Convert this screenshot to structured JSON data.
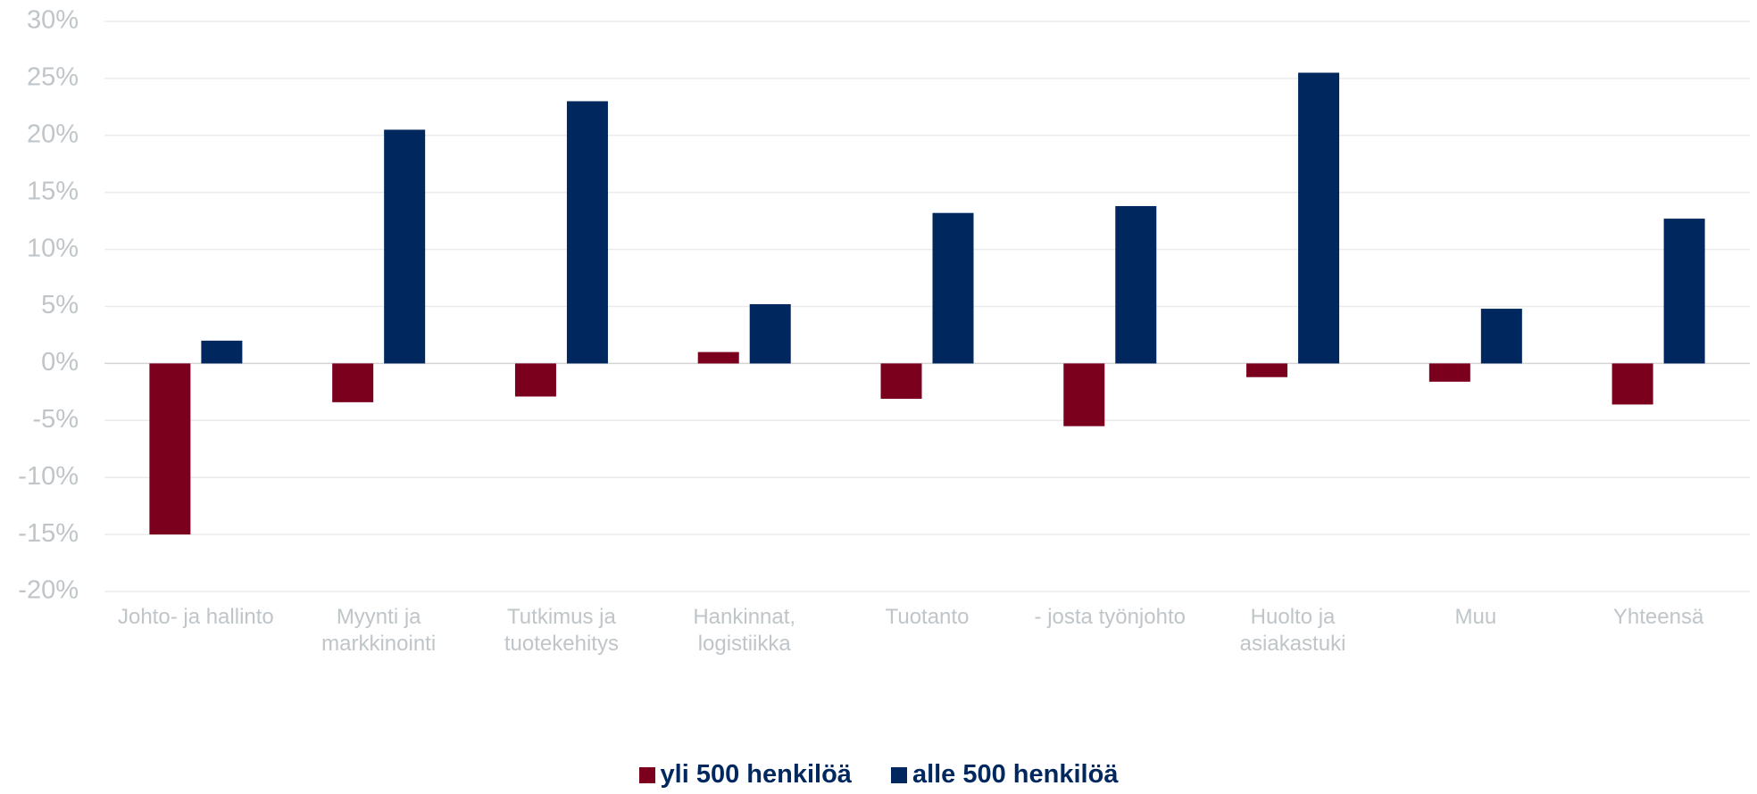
{
  "chart_data": {
    "type": "bar",
    "categories": [
      "Johto- ja hallinto",
      "Myynti ja markkinointi",
      "Tutkimus ja tuotekehitys",
      "Hankinnat, logistiikka",
      "Tuotanto",
      "- josta työnjohto",
      "Huolto ja asiakastuki",
      "Muu",
      "Yhteensä"
    ],
    "series": [
      {
        "name": "yli 500 henkilöä",
        "color": "#7b001e",
        "values": [
          -15,
          -3.4,
          -2.9,
          1.0,
          -3.1,
          -5.5,
          -1.2,
          -1.6,
          -3.6
        ]
      },
      {
        "name": "alle 500 henkilöä",
        "color": "#00285f",
        "values": [
          2.0,
          20.5,
          23.0,
          5.2,
          13.2,
          13.8,
          25.5,
          4.8,
          12.7
        ]
      }
    ],
    "ylim": [
      -20,
      30
    ],
    "yticks": [
      {
        "value": -20,
        "label": "-20%"
      },
      {
        "value": -15,
        "label": "-15%"
      },
      {
        "value": -10,
        "label": "-10%"
      },
      {
        "value": -5,
        "label": "-5%"
      },
      {
        "value": 0,
        "label": "0%"
      },
      {
        "value": 5,
        "label": "5%"
      },
      {
        "value": 10,
        "label": "10%"
      },
      {
        "value": 15,
        "label": "15%"
      },
      {
        "value": 20,
        "label": "20%"
      },
      {
        "value": 25,
        "label": "25%"
      },
      {
        "value": 30,
        "label": "30%"
      }
    ],
    "grid": true,
    "legend": "bottom"
  }
}
